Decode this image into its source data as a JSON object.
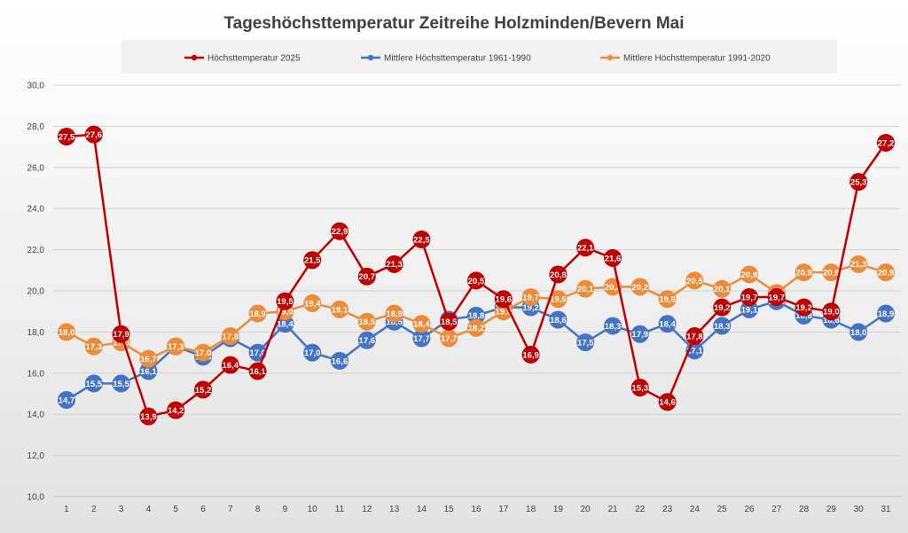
{
  "chart_data": {
    "type": "line",
    "title": "Tageshöchsttemperatur Zeitreihe Holzminden/Bevern Mai",
    "xlabel": "",
    "ylabel": "",
    "ylim": [
      10,
      30
    ],
    "ytick_step": 2,
    "ytick_labels": [
      "10,0",
      "12,0",
      "14,0",
      "16,0",
      "18,0",
      "20,0",
      "22,0",
      "24,0",
      "26,0",
      "28,0",
      "30,0"
    ],
    "categories": [
      "1",
      "2",
      "3",
      "4",
      "5",
      "6",
      "7",
      "8",
      "9",
      "10",
      "11",
      "12",
      "13",
      "14",
      "15",
      "16",
      "17",
      "18",
      "19",
      "20",
      "21",
      "22",
      "23",
      "24",
      "25",
      "26",
      "27",
      "28",
      "29",
      "30",
      "31"
    ],
    "legend_position": "top",
    "series": [
      {
        "name": "Höchsttemperatur 2025",
        "color": "#c00000",
        "values": [
          27.5,
          27.6,
          17.9,
          13.9,
          14.2,
          15.2,
          16.4,
          16.1,
          19.5,
          21.5,
          22.9,
          20.7,
          21.3,
          22.5,
          18.5,
          20.5,
          19.6,
          16.9,
          20.8,
          22.1,
          21.6,
          15.3,
          14.6,
          17.8,
          19.2,
          19.7,
          19.7,
          19.2,
          19.0,
          25.3,
          27.2
        ],
        "labels": [
          "27,5",
          "27,6",
          "17,9",
          "13,9",
          "14,2",
          "15,2",
          "16,4",
          "16,1",
          "19,5",
          "21,5",
          "22,9",
          "20,7",
          "21,3",
          "22,5",
          "18,5",
          "20,5",
          "19,6",
          "16,9",
          "20,8",
          "22,1",
          "21,6",
          "15,3",
          "14,6",
          "17,8",
          "19,2",
          "19,7",
          "19,7",
          "19,2",
          "19,0",
          "25,3",
          "27,2"
        ]
      },
      {
        "name": "Mittlere Höchsttemperatur 1961-1990",
        "color": "#4472c4",
        "values": [
          14.7,
          15.5,
          15.5,
          16.1,
          17.3,
          16.8,
          17.7,
          17.0,
          18.4,
          17.0,
          16.6,
          17.6,
          18.5,
          17.7,
          18.6,
          18.8,
          19.2,
          19.2,
          18.6,
          17.5,
          18.3,
          17.9,
          18.4,
          17.1,
          18.3,
          19.1,
          19.5,
          18.8,
          18.6,
          18.0,
          18.9
        ],
        "labels": [
          "14,7",
          "15,5",
          "15,5",
          "16,1",
          "17,3",
          "16,8",
          "17,7",
          "17,0",
          "18,4",
          "17,0",
          "16,6",
          "17,6",
          "18,5",
          "17,7",
          "18,6",
          "18,8",
          "19,2",
          "19,2",
          "18,6",
          "17,5",
          "18,3",
          "17,9",
          "18,4",
          "17,1",
          "18,3",
          "19,1",
          "19,5",
          "18,8",
          "18,6",
          "18,0",
          "18,9"
        ]
      },
      {
        "name": "Mittlere Höchsttemperatur 1991-2020",
        "color": "#ed8b3a",
        "values": [
          18.0,
          17.3,
          17.5,
          16.7,
          17.3,
          17.0,
          17.8,
          18.9,
          19.0,
          19.4,
          19.1,
          18.5,
          18.9,
          18.4,
          17.7,
          18.2,
          19.0,
          19.7,
          19.6,
          20.1,
          20.2,
          20.2,
          19.6,
          20.5,
          20.1,
          20.8,
          19.9,
          20.9,
          20.9,
          21.3,
          20.9
        ],
        "labels": [
          "18,0",
          "17,3",
          "17,5",
          "16,7",
          "17,3",
          "17,0",
          "17,8",
          "18,9",
          "19,0",
          "19,4",
          "19,1",
          "18,5",
          "18,9",
          "18,4",
          "17,7",
          "18,2",
          "19,0",
          "19,7",
          "19,6",
          "20,1",
          "20,2",
          "20,2",
          "19,6",
          "20,5",
          "20,1",
          "20,8",
          "19,9",
          "20,9",
          "20,9",
          "21,3",
          "20,9"
        ]
      }
    ]
  }
}
